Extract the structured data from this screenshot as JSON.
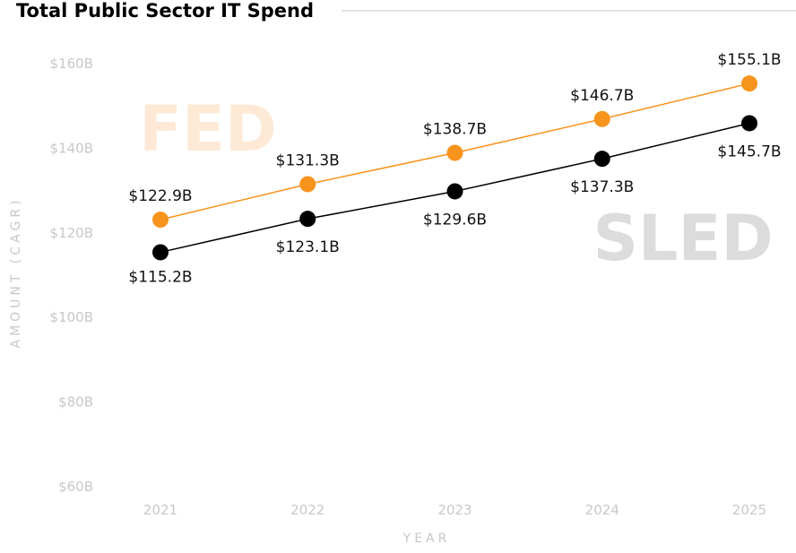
{
  "chart_data": {
    "type": "line",
    "title": "Total Public Sector IT Spend",
    "xlabel": "YEAR",
    "ylabel": "AMOUNT (CAGR)",
    "categories": [
      "2021",
      "2022",
      "2023",
      "2024",
      "2025"
    ],
    "yticks": [
      "$60B",
      "$80B",
      "$100B",
      "$120B",
      "$140B",
      "$160B"
    ],
    "ylim": [
      60,
      160
    ],
    "grid": false,
    "series": [
      {
        "name": "FED",
        "color": "#f7941d",
        "values": [
          122.9,
          131.3,
          138.7,
          146.7,
          155.1
        ],
        "labels": [
          "$122.9B",
          "$131.3B",
          "$138.7B",
          "$146.7B",
          "$155.1B"
        ]
      },
      {
        "name": "SLED",
        "color": "#000000",
        "values": [
          115.2,
          123.1,
          129.6,
          137.3,
          145.7
        ],
        "labels": [
          "$115.2B",
          "$123.1B",
          "$129.6B",
          "$137.3B",
          "$145.7B"
        ]
      }
    ],
    "watermark_colors": {
      "FED": "#fde9d6",
      "SLED": "#dcdcdc"
    }
  }
}
